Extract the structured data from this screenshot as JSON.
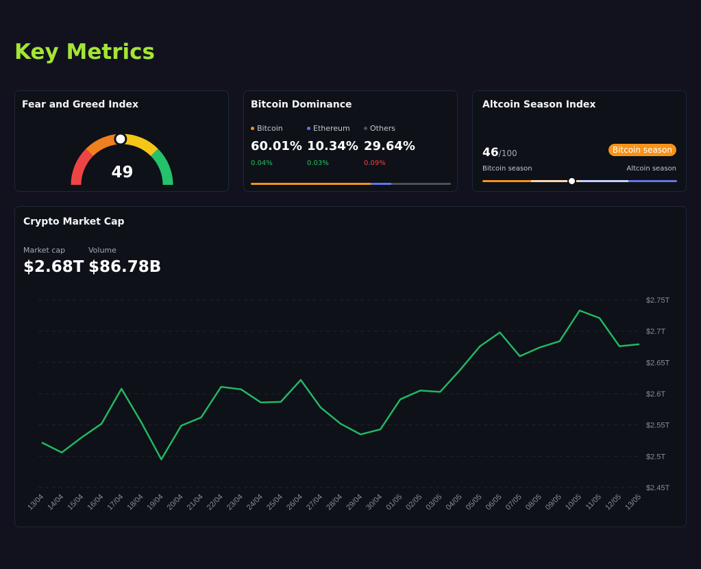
{
  "page": {
    "title": "Key Metrics"
  },
  "fear_greed": {
    "title": "Fear and Greed Index",
    "value": 49,
    "max": 100,
    "colors": [
      "#ef4444",
      "#f07f20",
      "#f5c518",
      "#23c26b"
    ]
  },
  "dominance": {
    "title": "Bitcoin Dominance",
    "items": [
      {
        "name": "Bitcoin",
        "percent": "60.01%",
        "value": 60.01,
        "change": "0.04%",
        "direction": "up",
        "color": "#f7931a"
      },
      {
        "name": "Ethereum",
        "percent": "10.34%",
        "value": 10.34,
        "change": "0.03%",
        "direction": "up",
        "color": "#6376e8"
      },
      {
        "name": "Others",
        "percent": "29.64%",
        "value": 29.64,
        "change": "0.09%",
        "direction": "down",
        "color": "#4b5060"
      }
    ]
  },
  "altcoin": {
    "title": "Altcoin Season Index",
    "value": "46",
    "max_label": "/100",
    "level": 46,
    "badge": "Bitcoin season",
    "left_label": "Bitcoin season",
    "right_label": "Altcoin season"
  },
  "market_cap": {
    "title": "Crypto Market Cap",
    "cap_label": "Market cap",
    "cap_value": "$2.68T",
    "volume_label": "Volume",
    "volume_value": "$86.78B"
  },
  "chart_data": {
    "type": "line",
    "title": "Crypto Market Cap",
    "line_color": "#22b864",
    "x": [
      "13/04",
      "14/04",
      "15/04",
      "16/04",
      "17/04",
      "18/04",
      "19/04",
      "20/04",
      "21/04",
      "22/04",
      "23/04",
      "24/04",
      "25/04",
      "26/04",
      "27/04",
      "28/04",
      "29/04",
      "30/04",
      "01/05",
      "02/05",
      "03/05",
      "04/05",
      "05/05",
      "06/05",
      "07/05",
      "08/05",
      "09/05",
      "10/05",
      "11/05",
      "12/05",
      "13/05"
    ],
    "values": [
      2.522,
      2.506,
      2.53,
      2.552,
      2.608,
      2.554,
      2.495,
      2.549,
      2.562,
      2.611,
      2.607,
      2.586,
      2.587,
      2.622,
      2.578,
      2.552,
      2.535,
      2.543,
      2.591,
      2.605,
      2.603,
      2.638,
      2.676,
      2.698,
      2.66,
      2.674,
      2.684,
      2.733,
      2.721,
      2.676,
      2.679
    ],
    "ylim": [
      2.45,
      2.75
    ],
    "yticks": [
      {
        "value": 2.75,
        "label": "$2.75T"
      },
      {
        "value": 2.7,
        "label": "$2.7T"
      },
      {
        "value": 2.65,
        "label": "$2.65T"
      },
      {
        "value": 2.6,
        "label": "$2.6T"
      },
      {
        "value": 2.55,
        "label": "$2.55T"
      },
      {
        "value": 2.5,
        "label": "$2.5T"
      },
      {
        "value": 2.45,
        "label": "$2.45T"
      }
    ],
    "grid": true,
    "y_axis_position": "right"
  }
}
